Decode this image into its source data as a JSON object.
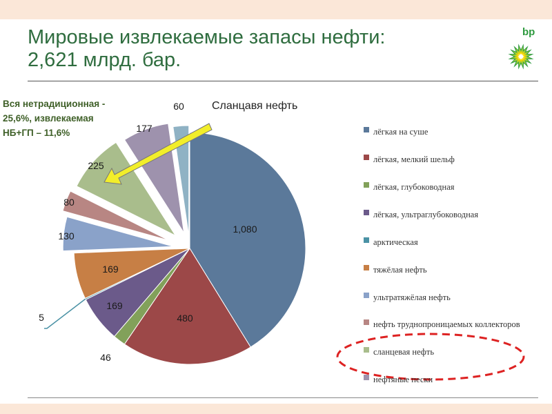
{
  "slide": {
    "title_line1": "Мировые извлекаемые запасы нефти:",
    "title_line2": "2,621 млрд. бар.",
    "logo_text": "bp",
    "unconventional_note": [
      "Вся нетрадиционная -",
      "25,6%, извлекаемая",
      "НБ+ГП – 11,6%"
    ],
    "callout_label": "Сланцавя нефть",
    "highlight_color": "#f2ee2a",
    "highlight_outline": "#dd2222"
  },
  "chart_data": {
    "type": "pie",
    "unit": "млрд. бар.",
    "slices": [
      {
        "label": "лёгкая на суше",
        "value": 1080,
        "display": "1,080",
        "color": "#5b799a"
      },
      {
        "label": "лёгкая, мелкий шельф",
        "value": 480,
        "display": "480",
        "color": "#9c4848"
      },
      {
        "label": "лёгкая, глубоководная",
        "value": 46,
        "display": "46",
        "color": "#82a15a"
      },
      {
        "label": "лёгкая, ультраглубоководная",
        "value": 169,
        "display": "169",
        "color": "#6b5a8a"
      },
      {
        "label": "арктическая",
        "value": 5,
        "display": "5",
        "color": "#4a92a5"
      },
      {
        "label": "тяжёлая нефть",
        "value": 169,
        "display": "169",
        "color": "#c77f45"
      },
      {
        "label": "ультратяжёлая нефть",
        "value": 130,
        "display": "130",
        "color": "#8aa2c9"
      },
      {
        "label": "нефть труднопроницаемых коллекторов",
        "value": 80,
        "display": "80",
        "color": "#b88683"
      },
      {
        "label": "сланцевая нефть",
        "value": 225,
        "display": "225",
        "color": "#a9bd8c"
      },
      {
        "label": "нефтяные пески",
        "value": 177,
        "display": "177",
        "color": "#9e92ad"
      },
      {
        "label": "",
        "value": 60,
        "display": "60",
        "color": "#8fb2c4"
      }
    ],
    "legend_placement": "right"
  }
}
